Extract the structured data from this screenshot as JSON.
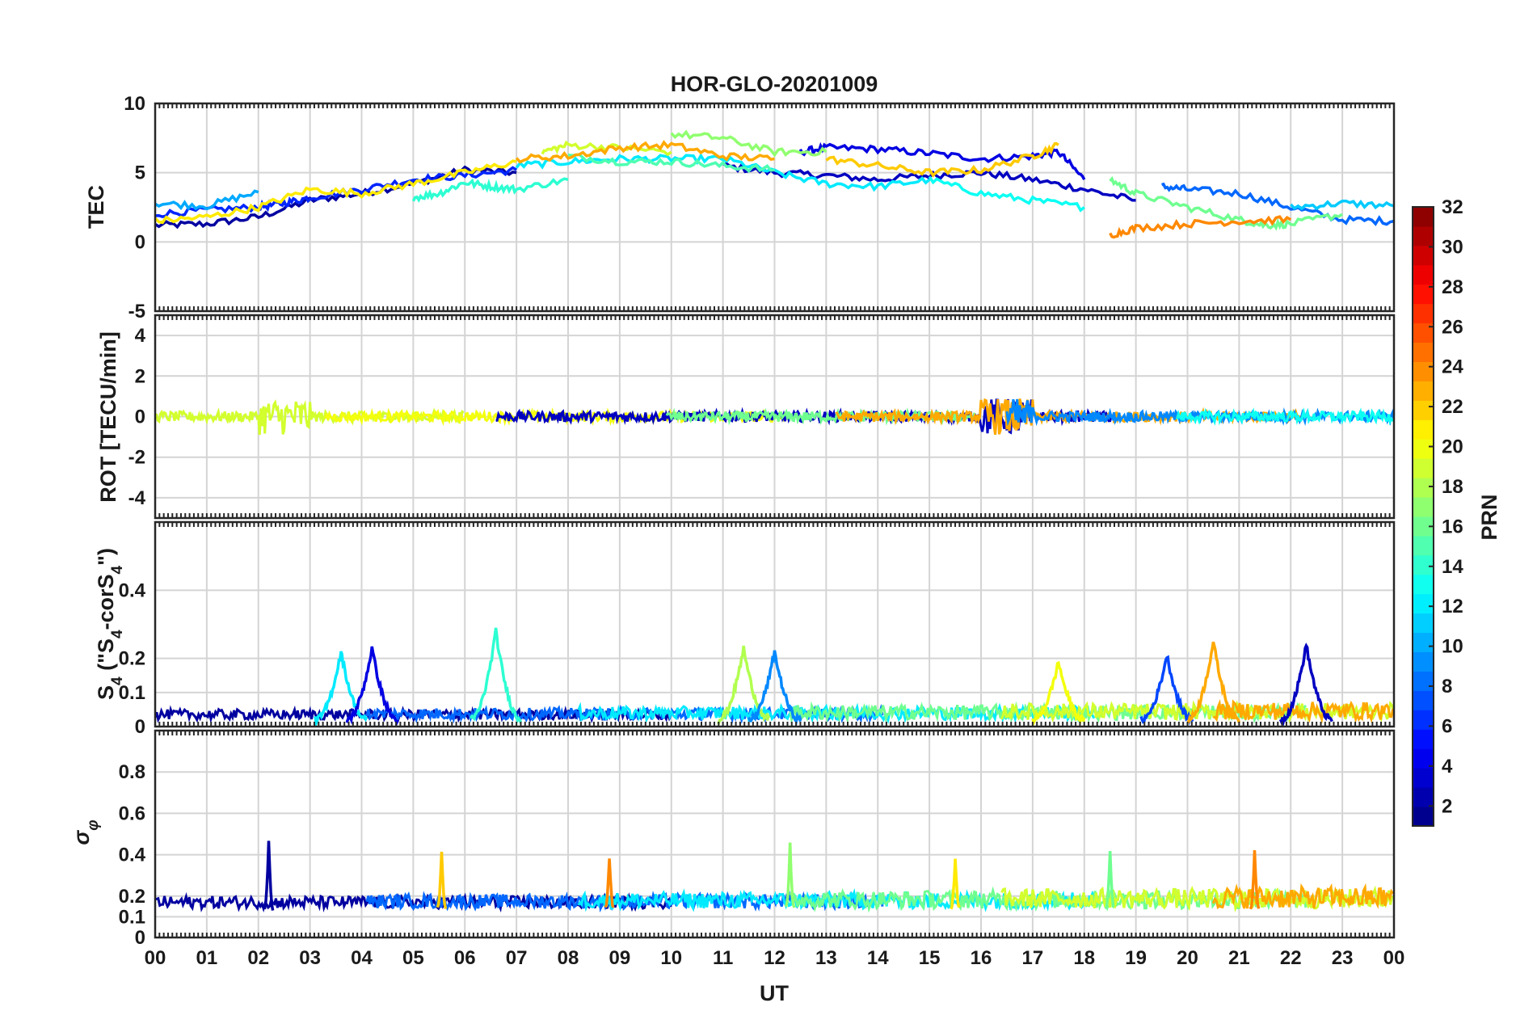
{
  "chart_data": {
    "type": "line",
    "title": "HOR-GLO-20201009",
    "xlabel": "UT",
    "x_ticks": [
      "00",
      "01",
      "02",
      "03",
      "04",
      "05",
      "06",
      "07",
      "08",
      "09",
      "10",
      "11",
      "12",
      "13",
      "14",
      "15",
      "16",
      "17",
      "18",
      "19",
      "20",
      "21",
      "22",
      "23",
      "00"
    ],
    "xlim": [
      0,
      24
    ],
    "colorbar": {
      "label": "PRN",
      "range": [
        1,
        32
      ],
      "ticks": [
        "2",
        "4",
        "6",
        "8",
        "10",
        "12",
        "14",
        "16",
        "18",
        "20",
        "22",
        "24",
        "26",
        "28",
        "30",
        "32"
      ],
      "colormap": "jet"
    },
    "panels": [
      {
        "id": "tec",
        "ylabel": "TEC",
        "ylim": [
          -5,
          10
        ],
        "y_ticks": [
          "-5",
          "0",
          "5",
          "10"
        ],
        "series": [
          {
            "prn": 2,
            "x": [
              0,
              1,
              2,
              3,
              4,
              5,
              6,
              7
            ],
            "y": [
              1.2,
              1.3,
              1.8,
              3.0,
              3.5,
              4.2,
              5.2,
              5.0
            ]
          },
          {
            "prn": 3,
            "x": [
              11,
              12,
              13,
              14,
              15,
              16,
              17,
              18,
              19
            ],
            "y": [
              5.5,
              5.0,
              4.8,
              4.5,
              4.8,
              5.0,
              4.5,
              3.8,
              3.0
            ]
          },
          {
            "prn": 4,
            "x": [
              12.5,
              13,
              14,
              15,
              16,
              17,
              17.5,
              18
            ],
            "y": [
              6.5,
              6.8,
              6.7,
              6.4,
              6.0,
              6.2,
              6.5,
              4.5
            ]
          },
          {
            "prn": 6,
            "x": [
              0,
              1,
              2,
              2.5,
              3,
              4,
              5,
              6,
              7
            ],
            "y": [
              2.0,
              2.3,
              2.5,
              2.8,
              3.2,
              3.8,
              4.5,
              4.8,
              5.2
            ]
          },
          {
            "prn": 8,
            "x": [
              19.5,
              20,
              21,
              22,
              23,
              24
            ],
            "y": [
              4.0,
              3.8,
              3.5,
              2.5,
              1.6,
              1.5
            ]
          },
          {
            "prn": 10,
            "x": [
              0,
              1,
              2
            ],
            "y": [
              2.8,
              2.6,
              3.6
            ]
          },
          {
            "prn": 11,
            "x": [
              22,
              23,
              24
            ],
            "y": [
              2.5,
              2.8,
              2.6
            ]
          },
          {
            "prn": 12,
            "x": [
              7,
              8,
              9,
              10,
              11,
              12,
              13,
              14,
              15
            ],
            "y": [
              5.5,
              5.8,
              6.0,
              6.0,
              6.0,
              5.0,
              4.2,
              4.0,
              4.5
            ]
          },
          {
            "prn": 13,
            "x": [
              15,
              16,
              17,
              18
            ],
            "y": [
              4.5,
              3.5,
              3.0,
              2.5
            ]
          },
          {
            "prn": 14,
            "x": [
              5,
              5.5,
              6,
              6.5,
              7,
              8
            ],
            "y": [
              3.2,
              3.5,
              4.3,
              4.0,
              3.8,
              4.5
            ]
          },
          {
            "prn": 15,
            "x": [
              8,
              9,
              10,
              11,
              12
            ],
            "y": [
              6.2,
              5.8,
              5.8,
              5.5,
              5.2
            ]
          },
          {
            "prn": 16,
            "x": [
              18.5,
              19,
              20,
              21,
              21.5,
              22,
              23
            ],
            "y": [
              4.5,
              3.5,
              2.5,
              1.6,
              1.2,
              1.3,
              2.0
            ]
          },
          {
            "prn": 17,
            "x": [
              10,
              11,
              12,
              13
            ],
            "y": [
              7.8,
              7.5,
              6.5,
              6.5
            ]
          },
          {
            "prn": 19,
            "x": [
              7.5,
              8,
              9,
              10
            ],
            "y": [
              6.5,
              7.0,
              6.8,
              6.5
            ]
          },
          {
            "prn": 21,
            "x": [
              0,
              1,
              2,
              3,
              4,
              5,
              6,
              7
            ],
            "y": [
              1.5,
              1.8,
              2.5,
              3.8,
              3.5,
              4.2,
              5.0,
              5.8
            ]
          },
          {
            "prn": 22,
            "x": [
              13,
              14,
              15,
              16,
              17,
              17.5
            ],
            "y": [
              6.0,
              5.5,
              5.0,
              5.2,
              6.2,
              7.0
            ]
          },
          {
            "prn": 23,
            "x": [
              7,
              8,
              9,
              10,
              11,
              12
            ],
            "y": [
              6.0,
              6.2,
              6.8,
              7.0,
              6.2,
              6.0
            ]
          },
          {
            "prn": 24,
            "x": [
              18.5,
              19,
              20,
              21,
              22
            ],
            "y": [
              0.5,
              1.0,
              1.3,
              1.5,
              1.6
            ]
          }
        ]
      },
      {
        "id": "rot",
        "ylabel": "ROT [TECU/min]",
        "ylim": [
          -5,
          5
        ],
        "y_ticks": [
          "-4",
          "-2",
          "0",
          "2",
          "4"
        ],
        "description_values": {
          "baseline": 0,
          "max_abs_excursion": 1.2
        }
      },
      {
        "id": "s4",
        "ylabel": "S4 (\"S4-corS4\")",
        "ylabel_parts": {
          "s": "S",
          "sub": "4",
          "open": " (\"S",
          "sub2": "4",
          "mid": "-corS",
          "sub3": "4",
          "close": "\")"
        },
        "ylim": [
          0,
          0.6
        ],
        "y_ticks": [
          "0",
          "0.1",
          "0.2",
          "0.4"
        ],
        "peaks": [
          {
            "prn": 12,
            "x": 3.6,
            "y": 0.22
          },
          {
            "prn": 4,
            "x": 4.2,
            "y": 0.23
          },
          {
            "prn": 14,
            "x": 6.6,
            "y": 0.28
          },
          {
            "prn": 18,
            "x": 11.4,
            "y": 0.23
          },
          {
            "prn": 9,
            "x": 12.0,
            "y": 0.22
          },
          {
            "prn": 20,
            "x": 17.5,
            "y": 0.19
          },
          {
            "prn": 7,
            "x": 19.6,
            "y": 0.21
          },
          {
            "prn": 23,
            "x": 20.5,
            "y": 0.25
          },
          {
            "prn": 3,
            "x": 22.3,
            "y": 0.24
          }
        ]
      },
      {
        "id": "sigma_phi",
        "ylabel": "σφ",
        "ylabel_parts": {
          "base": "σ",
          "sub": "φ"
        },
        "ylim": [
          0,
          1
        ],
        "y_ticks": [
          "0",
          "0.1",
          "0.2",
          "0.4",
          "0.6",
          "0.8"
        ],
        "peaks": [
          {
            "prn": 2,
            "x": 2.2,
            "y": 0.47
          },
          {
            "prn": 22,
            "x": 5.55,
            "y": 0.42
          },
          {
            "prn": 24,
            "x": 8.8,
            "y": 0.39
          },
          {
            "prn": 17,
            "x": 12.3,
            "y": 0.46
          },
          {
            "prn": 21,
            "x": 15.5,
            "y": 0.39
          },
          {
            "prn": 16,
            "x": 18.5,
            "y": 0.42
          },
          {
            "prn": 24,
            "x": 21.3,
            "y": 0.42
          }
        ]
      }
    ]
  }
}
